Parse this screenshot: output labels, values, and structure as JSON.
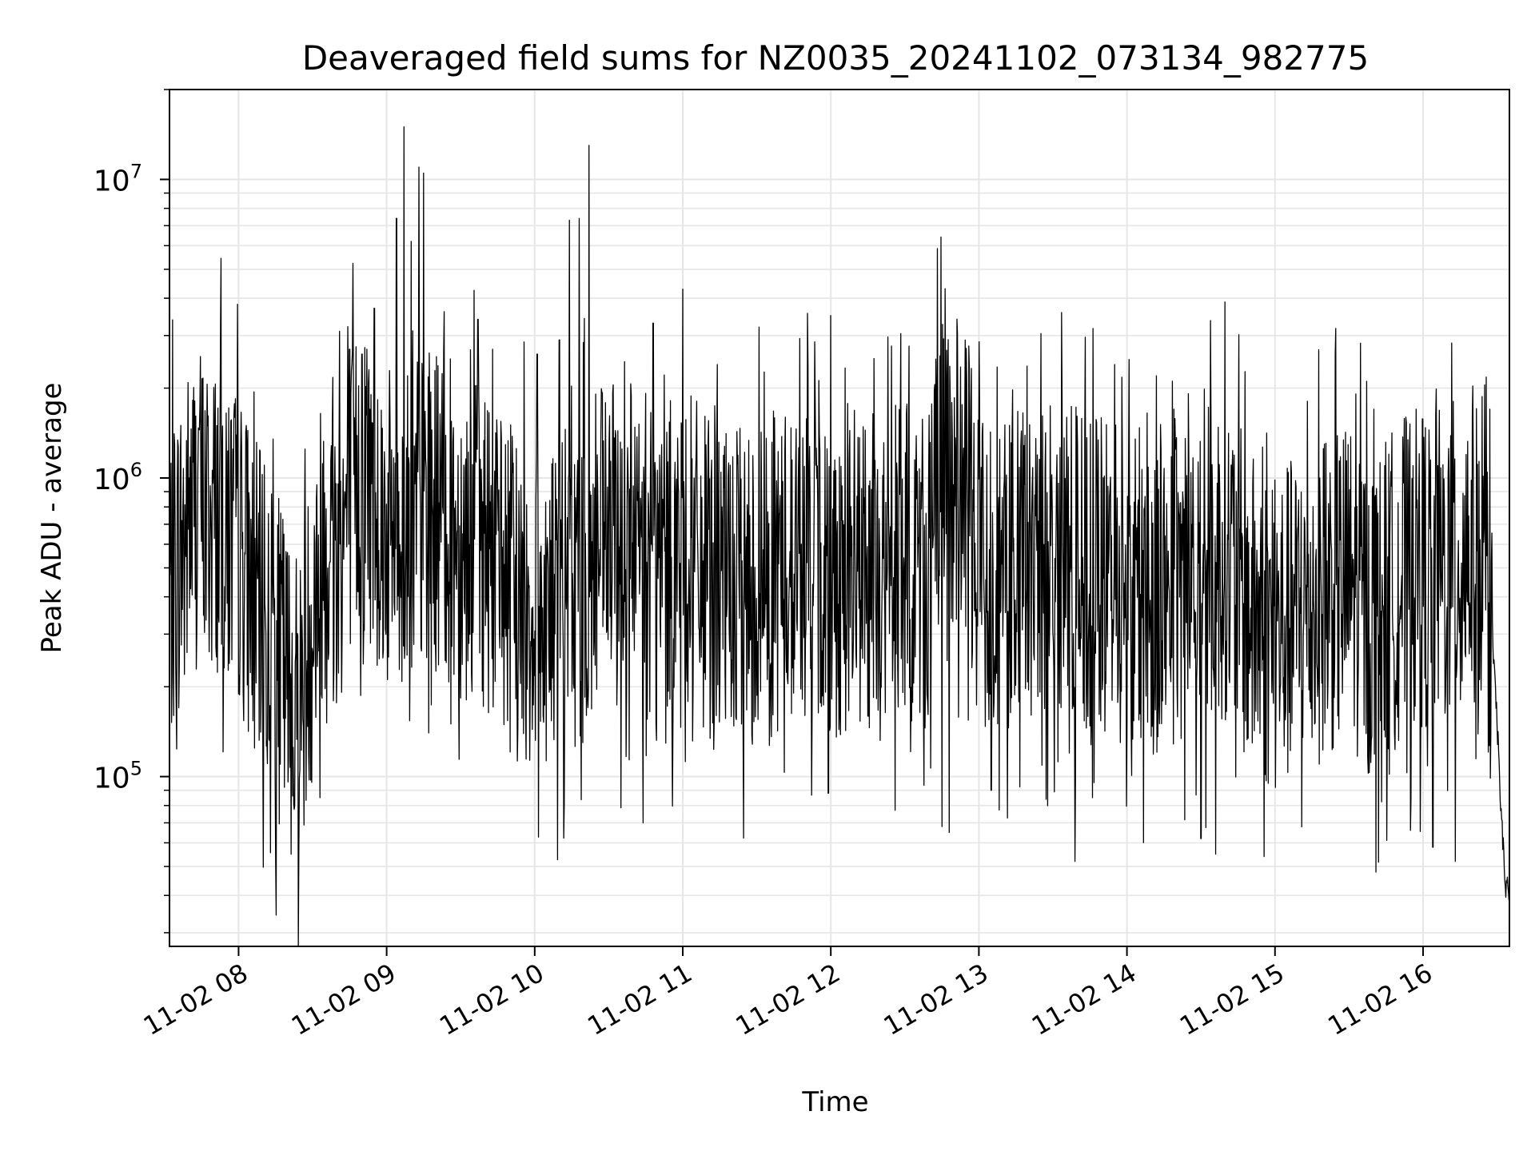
{
  "chart_data": {
    "type": "line",
    "title": "Deaveraged field sums for NZ0035_20241102_073134_982775",
    "xlabel": "Time",
    "ylabel": "Peak ADU - average",
    "yscale": "log",
    "ylim": [
      27000,
      20000000
    ],
    "xlim": [
      "2024-11-02 07:32",
      "2024-11-02 16:35"
    ],
    "grid": true,
    "line_color": "#000000",
    "x_ticks": [
      "2024-11-02 08:00",
      "2024-11-02 09:00",
      "2024-11-02 10:00",
      "2024-11-02 11:00",
      "2024-11-02 12:00",
      "2024-11-02 13:00",
      "2024-11-02 14:00",
      "2024-11-02 15:00",
      "2024-11-02 16:00"
    ],
    "x_tick_labels": [
      "11-02 08",
      "11-02 09",
      "11-02 10",
      "11-02 11",
      "11-02 12",
      "11-02 13",
      "11-02 14",
      "11-02 15",
      "11-02 16"
    ],
    "y_ticks": [
      {
        "value": 100000,
        "base": "10",
        "exp": "5"
      },
      {
        "value": 1000000,
        "base": "10",
        "exp": "6"
      },
      {
        "value": 10000000,
        "base": "10",
        "exp": "7"
      }
    ],
    "series": [
      {
        "values": [
          [
            "2024-11-02 07:32",
            420000
          ],
          [
            "2024-11-02 07:36",
            560000
          ],
          [
            "2024-11-02 07:40",
            720000
          ],
          [
            "2024-11-02 07:44",
            850000
          ],
          [
            "2024-11-02 07:48",
            700000
          ],
          [
            "2024-11-02 07:52",
            780000
          ],
          [
            "2024-11-02 07:56",
            640000
          ],
          [
            "2024-11-02 08:00",
            600000
          ],
          [
            "2024-11-02 08:05",
            450000
          ],
          [
            "2024-11-02 08:10",
            320000
          ],
          [
            "2024-11-02 08:15",
            260000
          ],
          [
            "2024-11-02 08:20",
            200000
          ],
          [
            "2024-11-02 08:25",
            180000
          ],
          [
            "2024-11-02 08:30",
            350000
          ],
          [
            "2024-11-02 08:35",
            700000
          ],
          [
            "2024-11-02 08:40",
            600000
          ],
          [
            "2024-11-02 08:45",
            800000
          ],
          [
            "2024-11-02 08:50",
            1000000
          ],
          [
            "2024-11-02 08:55",
            900000
          ],
          [
            "2024-11-02 09:00",
            650000
          ],
          [
            "2024-11-02 09:10",
            700000
          ],
          [
            "2024-11-02 09:20",
            800000
          ],
          [
            "2024-11-02 09:30",
            650000
          ],
          [
            "2024-11-02 09:40",
            600000
          ],
          [
            "2024-11-02 09:50",
            450000
          ],
          [
            "2024-11-02 10:00",
            350000
          ],
          [
            "2024-11-02 10:10",
            400000
          ],
          [
            "2024-11-02 10:20",
            450000
          ],
          [
            "2024-11-02 10:30",
            600000
          ],
          [
            "2024-11-02 10:40",
            500000
          ],
          [
            "2024-11-02 10:50",
            450000
          ],
          [
            "2024-11-02 11:00",
            600000
          ],
          [
            "2024-11-02 11:10",
            450000
          ],
          [
            "2024-11-02 11:20",
            400000
          ],
          [
            "2024-11-02 11:30",
            450000
          ],
          [
            "2024-11-02 11:40",
            500000
          ],
          [
            "2024-11-02 11:50",
            550000
          ],
          [
            "2024-11-02 12:00",
            450000
          ],
          [
            "2024-11-02 12:10",
            500000
          ],
          [
            "2024-11-02 12:20",
            450000
          ],
          [
            "2024-11-02 12:30",
            500000
          ],
          [
            "2024-11-02 12:40",
            550000
          ],
          [
            "2024-11-02 12:45",
            1000000
          ],
          [
            "2024-11-02 12:50",
            1000000
          ],
          [
            "2024-11-02 12:55",
            900000
          ],
          [
            "2024-11-02 13:00",
            550000
          ],
          [
            "2024-11-02 13:10",
            450000
          ],
          [
            "2024-11-02 13:20",
            500000
          ],
          [
            "2024-11-02 13:30",
            550000
          ],
          [
            "2024-11-02 13:40",
            500000
          ],
          [
            "2024-11-02 13:50",
            450000
          ],
          [
            "2024-11-02 14:00",
            450000
          ],
          [
            "2024-11-02 14:10",
            400000
          ],
          [
            "2024-11-02 14:20",
            450000
          ],
          [
            "2024-11-02 14:30",
            500000
          ],
          [
            "2024-11-02 14:40",
            550000
          ],
          [
            "2024-11-02 14:50",
            350000
          ],
          [
            "2024-11-02 15:00",
            300000
          ],
          [
            "2024-11-02 15:10",
            350000
          ],
          [
            "2024-11-02 15:20",
            400000
          ],
          [
            "2024-11-02 15:30",
            450000
          ],
          [
            "2024-11-02 15:40",
            330000
          ],
          [
            "2024-11-02 15:50",
            450000
          ],
          [
            "2024-11-02 16:00",
            500000
          ],
          [
            "2024-11-02 16:10",
            500000
          ],
          [
            "2024-11-02 16:20",
            600000
          ],
          [
            "2024-11-02 16:25",
            350000
          ],
          [
            "2024-11-02 16:28",
            300000
          ],
          [
            "2024-11-02 16:30",
            150000
          ],
          [
            "2024-11-02 16:33",
            45000
          ],
          [
            "2024-11-02 16:35",
            38000
          ]
        ]
      }
    ],
    "peaks": [
      [
        "2024-11-02 07:44",
        1450000
      ],
      [
        "2024-11-02 07:55",
        1650000
      ],
      [
        "2024-11-02 08:14",
        1350000
      ],
      [
        "2024-11-02 08:27",
        1250000
      ],
      [
        "2024-11-02 08:33",
        85000
      ],
      [
        "2024-11-02 08:41",
        3100000
      ],
      [
        "2024-11-02 08:45",
        2700000
      ],
      [
        "2024-11-02 08:50",
        2600000
      ],
      [
        "2024-11-02 08:52",
        2700000
      ],
      [
        "2024-11-02 08:55",
        3700000
      ],
      [
        "2024-11-02 09:04",
        7400000
      ],
      [
        "2024-11-02 09:07",
        15000000
      ],
      [
        "2024-11-02 09:10",
        6200000
      ],
      [
        "2024-11-02 09:13",
        11000000
      ],
      [
        "2024-11-02 09:15",
        10500000
      ],
      [
        "2024-11-02 09:17",
        140000
      ],
      [
        "2024-11-02 09:26",
        150000
      ],
      [
        "2024-11-02 09:37",
        3400000
      ],
      [
        "2024-11-02 09:43",
        2700000
      ],
      [
        "2024-11-02 10:01",
        2600000
      ],
      [
        "2024-11-02 10:10",
        2900000
      ],
      [
        "2024-11-02 10:14",
        7300000
      ],
      [
        "2024-11-02 10:18",
        7400000
      ],
      [
        "2024-11-02 10:22",
        13000000
      ],
      [
        "2024-11-02 10:44",
        70000
      ],
      [
        "2024-11-02 10:48",
        3300000
      ],
      [
        "2024-11-02 11:14",
        2400000
      ],
      [
        "2024-11-02 11:31",
        3200000
      ],
      [
        "2024-11-02 11:59",
        88000
      ],
      [
        "2024-11-02 12:00",
        3500000
      ],
      [
        "2024-11-02 12:45",
        68000
      ],
      [
        "2024-11-02 12:48",
        65000
      ],
      [
        "2024-11-02 13:05",
        90000
      ],
      [
        "2024-11-02 13:39",
        52000
      ],
      [
        "2024-11-02 13:46",
        85000
      ],
      [
        "2024-11-02 13:55",
        2400000
      ],
      [
        "2024-11-02 14:12",
        2200000
      ],
      [
        "2024-11-02 14:19",
        1700000
      ],
      [
        "2024-11-02 14:30",
        62000
      ],
      [
        "2024-11-02 14:36",
        55000
      ],
      [
        "2024-11-02 15:20",
        1300000
      ],
      [
        "2024-11-02 15:40",
        1700000
      ],
      [
        "2024-11-02 15:56",
        1100000
      ],
      [
        "2024-11-02 16:06",
        1100000
      ],
      [
        "2024-11-02 16:25",
        2050000
      ],
      [
        "2024-11-02 16:27",
        1700000
      ],
      [
        "2024-11-02 16:13",
        52000
      ],
      [
        "2024-11-02 16:04",
        58000
      ]
    ]
  }
}
